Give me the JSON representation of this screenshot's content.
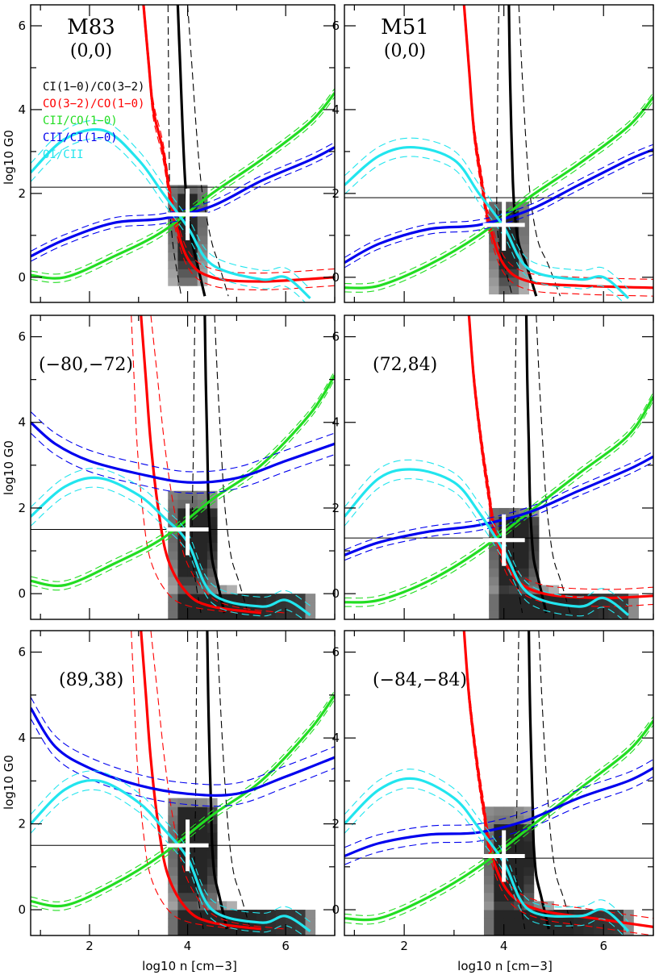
{
  "figure": {
    "xlabel": "log10 n [cm−3]",
    "ylabel": "log10 G0",
    "legend": [
      {
        "label": "CI(1−0)/CO(3−2)",
        "color": "#000000"
      },
      {
        "label": "CO(3−2)/CO(1−0)",
        "color": "#ff0000"
      },
      {
        "label": "CII/CO(1−0)",
        "color": "#22dd22"
      },
      {
        "label": "CII/CI(1−0)",
        "color": "#0000ee"
      },
      {
        "label": "OI/CII",
        "color": "#22e5ee"
      }
    ]
  },
  "chart_data": [
    {
      "type": "line",
      "galaxy": "M83",
      "position": "(0,0)",
      "xlim": [
        0.8,
        7.0
      ],
      "ylim": [
        -0.6,
        6.5
      ],
      "xticks": [
        2,
        4,
        6
      ],
      "yticks": [
        0,
        2,
        4,
        6
      ],
      "hline": 2.15,
      "best_fit": [
        4.0,
        1.5
      ],
      "grid": "off",
      "legend_placement": "left",
      "series": [
        {
          "name": "CI(1−0)/CO(3−2)",
          "x": [
            3.8,
            3.85,
            3.9,
            3.95,
            4.0,
            4.1,
            4.2,
            4.35
          ],
          "y": [
            6.5,
            5,
            3.5,
            2.3,
            1.6,
            0.8,
            0.3,
            -0.45
          ],
          "band": 0.2
        },
        {
          "name": "CO(3−2)/CO(1−0)",
          "x": [
            3.1,
            3.2,
            3.3,
            3.5,
            3.7,
            4.0,
            4.5,
            5.5,
            7.0
          ],
          "y": [
            6.5,
            5.2,
            4.0,
            3.0,
            1.6,
            0.45,
            0.0,
            -0.1,
            0.0
          ],
          "band": 0.2
        },
        {
          "name": "CII/CO(1−0)",
          "x": [
            0.8,
            1.5,
            2.5,
            3.5,
            4.5,
            5.5,
            6.5,
            7.0
          ],
          "y": [
            0.05,
            0.0,
            0.5,
            1.1,
            2.0,
            2.8,
            3.7,
            4.4
          ],
          "band": 0.1
        },
        {
          "name": "CII/CI(1−0)",
          "x": [
            0.8,
            1.5,
            2.5,
            3.5,
            4.5,
            5.5,
            6.5,
            7.0
          ],
          "y": [
            0.5,
            0.9,
            1.3,
            1.4,
            1.7,
            2.3,
            2.8,
            3.1
          ],
          "band": 0.12
        },
        {
          "name": "OI/CII",
          "x": [
            0.8,
            1.5,
            2.3,
            3.0,
            3.5,
            4.0,
            4.5,
            5.5,
            6.0,
            6.5
          ],
          "y": [
            2.5,
            3.3,
            3.5,
            2.8,
            2.0,
            1.2,
            0.3,
            -0.05,
            0.0,
            -0.5
          ],
          "band": 0.22
        }
      ],
      "heatmap": {
        "x": [
          3.6,
          4.4
        ],
        "y": [
          -0.2,
          2.2
        ]
      }
    },
    {
      "type": "line",
      "galaxy": "M51",
      "position": "(0,0)",
      "xlim": [
        0.8,
        7.0
      ],
      "ylim": [
        -0.6,
        6.5
      ],
      "xticks": [
        2,
        4,
        6
      ],
      "yticks": [
        0,
        2,
        4,
        6
      ],
      "hline": 1.9,
      "best_fit": [
        4.0,
        1.25
      ],
      "grid": "off",
      "series": [
        {
          "name": "CI(1−0)/CO(3−2)",
          "x": [
            4.1,
            4.12,
            4.15,
            4.18,
            4.22,
            4.3,
            4.45,
            4.65
          ],
          "y": [
            6.5,
            5,
            3.5,
            2.3,
            1.5,
            0.8,
            0.3,
            -0.45
          ],
          "band": 0.2
        },
        {
          "name": "CO(3−2)/CO(1−0)",
          "x": [
            3.2,
            3.3,
            3.4,
            3.55,
            3.7,
            4.0,
            4.5,
            5.5,
            7.0
          ],
          "y": [
            6.5,
            5.0,
            3.5,
            2.3,
            1.3,
            0.3,
            -0.1,
            -0.2,
            -0.25
          ],
          "band": 0.2
        },
        {
          "name": "CII/CO(1−0)",
          "x": [
            0.8,
            1.5,
            2.5,
            3.5,
            4.5,
            5.5,
            6.5,
            7.0
          ],
          "y": [
            -0.25,
            -0.2,
            0.3,
            1.0,
            1.9,
            2.7,
            3.6,
            4.3
          ],
          "band": 0.1
        },
        {
          "name": "CII/CI(1−0)",
          "x": [
            0.8,
            1.5,
            2.5,
            3.5,
            4.5,
            5.5,
            6.5,
            7.0
          ],
          "y": [
            0.35,
            0.8,
            1.15,
            1.25,
            1.6,
            2.2,
            2.8,
            3.05
          ],
          "band": 0.12
        },
        {
          "name": "OI/CII",
          "x": [
            0.8,
            1.5,
            2.2,
            3.0,
            3.5,
            4.0,
            4.5,
            5.5,
            6.0,
            6.5
          ],
          "y": [
            2.2,
            2.9,
            3.1,
            2.8,
            2.0,
            1.2,
            0.2,
            -0.05,
            0.0,
            -0.5
          ],
          "band": 0.22
        }
      ],
      "heatmap": {
        "x": [
          3.7,
          4.5
        ],
        "y": [
          -0.4,
          1.8
        ]
      }
    },
    {
      "type": "line",
      "galaxy": "M83",
      "position": "(−80,−72)",
      "xlim": [
        0.8,
        7.0
      ],
      "ylim": [
        -0.6,
        6.5
      ],
      "xticks": [
        2,
        4,
        6
      ],
      "yticks": [
        0,
        2,
        4,
        6
      ],
      "hline": 1.5,
      "best_fit": [
        4.0,
        1.5
      ],
      "grid": "off",
      "series": [
        {
          "name": "CI(1−0)/CO(3−2)",
          "x": [
            4.35,
            4.37,
            4.4,
            4.42,
            4.45,
            4.5,
            4.6,
            4.75
          ],
          "y": [
            6.5,
            5,
            3.5,
            2.3,
            1.5,
            0.8,
            0.3,
            -0.45
          ],
          "band": 0.2
        },
        {
          "name": "CO(3−2)/CO(1−0)",
          "x": [
            3.05,
            3.15,
            3.25,
            3.4,
            3.6,
            4.0,
            4.5,
            5.5
          ],
          "y": [
            6.5,
            5.0,
            3.5,
            2.0,
            0.8,
            0.0,
            -0.3,
            -0.45
          ],
          "band": 0.2
        },
        {
          "name": "CII/CO(1−0)",
          "x": [
            0.8,
            1.5,
            2.5,
            3.5,
            4.5,
            5.5,
            6.5,
            7.0
          ],
          "y": [
            0.3,
            0.2,
            0.7,
            1.3,
            2.2,
            3.0,
            4.2,
            5.1
          ],
          "band": 0.1
        },
        {
          "name": "CII/CI(1−0)",
          "x": [
            0.8,
            1.3,
            2.0,
            3.0,
            4.0,
            5.0,
            6.0,
            7.0
          ],
          "y": [
            4.0,
            3.5,
            3.1,
            2.8,
            2.6,
            2.7,
            3.1,
            3.5
          ],
          "band": 0.25
        },
        {
          "name": "OI/CII",
          "x": [
            0.8,
            1.5,
            2.2,
            3.0,
            3.5,
            4.0,
            4.5,
            5.5,
            6.0,
            6.5
          ],
          "y": [
            1.8,
            2.5,
            2.7,
            2.3,
            1.8,
            1.2,
            0.0,
            -0.3,
            -0.15,
            -0.5
          ],
          "band": 0.22
        }
      ],
      "heatmap": {
        "x": [
          3.6,
          6.6
        ],
        "y": [
          -0.6,
          2.3
        ]
      }
    },
    {
      "type": "line",
      "galaxy": "M51",
      "position": "(72,84)",
      "xlim": [
        0.8,
        7.0
      ],
      "ylim": [
        -0.6,
        6.5
      ],
      "xticks": [
        2,
        4,
        6
      ],
      "yticks": [
        0,
        2,
        4,
        6
      ],
      "hline": 1.3,
      "best_fit": [
        4.0,
        1.25
      ],
      "grid": "off",
      "series": [
        {
          "name": "CI(1−0)/CO(3−2)",
          "x": [
            4.45,
            4.47,
            4.5,
            4.52,
            4.55,
            4.6,
            4.7,
            4.85
          ],
          "y": [
            6.5,
            5,
            3.5,
            2.3,
            1.5,
            0.8,
            0.3,
            -0.45
          ],
          "band": 0.2
        },
        {
          "name": "CO(3−2)/CO(1−0)",
          "x": [
            3.3,
            3.4,
            3.55,
            3.7,
            3.85,
            4.2,
            4.8,
            6.0,
            7.0
          ],
          "y": [
            6.5,
            5.0,
            3.5,
            2.3,
            1.3,
            0.4,
            0.0,
            -0.1,
            -0.05
          ],
          "band": 0.2
        },
        {
          "name": "CII/CO(1−0)",
          "x": [
            0.8,
            1.5,
            2.5,
            3.5,
            4.5,
            5.5,
            6.5,
            7.0
          ],
          "y": [
            -0.2,
            -0.15,
            0.3,
            1.0,
            1.9,
            2.8,
            3.7,
            4.6
          ],
          "band": 0.1
        },
        {
          "name": "CII/CI(1−0)",
          "x": [
            0.8,
            1.5,
            2.5,
            3.5,
            4.5,
            5.5,
            6.5,
            7.0
          ],
          "y": [
            0.9,
            1.2,
            1.45,
            1.6,
            1.9,
            2.4,
            2.9,
            3.2
          ],
          "band": 0.12
        },
        {
          "name": "OI/CII",
          "x": [
            0.8,
            1.5,
            2.2,
            3.0,
            3.5,
            4.0,
            4.5,
            5.5,
            6.0,
            6.5
          ],
          "y": [
            1.8,
            2.7,
            2.9,
            2.6,
            1.9,
            1.0,
            0.0,
            -0.3,
            -0.1,
            -0.5
          ],
          "band": 0.22
        }
      ],
      "heatmap": {
        "x": [
          3.7,
          6.7
        ],
        "y": [
          -0.6,
          2.0
        ]
      }
    },
    {
      "type": "line",
      "galaxy": "M83",
      "position": "(89,38)",
      "xlim": [
        0.8,
        7.0
      ],
      "ylim": [
        -0.6,
        6.5
      ],
      "xticks": [
        2,
        4,
        6
      ],
      "yticks": [
        0,
        2,
        4,
        6
      ],
      "hline": 1.5,
      "best_fit": [
        4.0,
        1.5
      ],
      "grid": "off",
      "series": [
        {
          "name": "CI(1−0)/CO(3−2)",
          "x": [
            4.4,
            4.42,
            4.45,
            4.48,
            4.5,
            4.55,
            4.65,
            4.8
          ],
          "y": [
            6.5,
            5,
            3.5,
            2.3,
            1.5,
            0.8,
            0.3,
            -0.45
          ],
          "band": 0.2
        },
        {
          "name": "CO(3−2)/CO(1−0)",
          "x": [
            3.05,
            3.15,
            3.25,
            3.4,
            3.6,
            4.0,
            4.5,
            5.5
          ],
          "y": [
            6.5,
            5.0,
            3.5,
            2.0,
            0.8,
            0.0,
            -0.3,
            -0.45
          ],
          "band": 0.2
        },
        {
          "name": "CII/CO(1−0)",
          "x": [
            0.8,
            1.5,
            2.5,
            3.5,
            4.5,
            5.5,
            6.5,
            7.0
          ],
          "y": [
            0.2,
            0.1,
            0.6,
            1.3,
            2.2,
            3.0,
            4.2,
            5.0
          ],
          "band": 0.1
        },
        {
          "name": "CII/CI(1−0)",
          "x": [
            0.8,
            1.3,
            2.0,
            3.0,
            4.0,
            5.0,
            6.0,
            7.0
          ],
          "y": [
            4.7,
            3.8,
            3.3,
            2.9,
            2.7,
            2.7,
            3.1,
            3.55
          ],
          "band": 0.25
        },
        {
          "name": "OI/CII",
          "x": [
            0.8,
            1.5,
            2.2,
            3.0,
            3.5,
            4.0,
            4.5,
            5.5,
            6.0,
            6.5
          ],
          "y": [
            2.0,
            2.8,
            3.0,
            2.5,
            1.9,
            1.2,
            0.0,
            -0.3,
            -0.15,
            -0.5
          ],
          "band": 0.22
        }
      ],
      "heatmap": {
        "x": [
          3.6,
          6.6
        ],
        "y": [
          -0.6,
          2.6
        ]
      }
    },
    {
      "type": "line",
      "galaxy": "M51",
      "position": "(−84,−84)",
      "xlim": [
        0.8,
        7.0
      ],
      "ylim": [
        -0.6,
        6.5
      ],
      "xticks": [
        2,
        4,
        6
      ],
      "yticks": [
        0,
        2,
        4,
        6
      ],
      "hline": 1.2,
      "best_fit": [
        4.0,
        1.25
      ],
      "grid": "off",
      "series": [
        {
          "name": "CI(1−0)/CO(3−2)",
          "x": [
            4.5,
            4.52,
            4.55,
            4.58,
            4.6,
            4.65,
            4.75,
            4.9
          ],
          "y": [
            6.5,
            5,
            3.5,
            2.3,
            1.5,
            0.8,
            0.3,
            -0.45
          ],
          "band": 0.2
        },
        {
          "name": "CO(3−2)/CO(1−0)",
          "x": [
            3.2,
            3.3,
            3.45,
            3.6,
            3.75,
            4.1,
            4.7,
            5.8,
            7.0
          ],
          "y": [
            6.5,
            5.0,
            3.5,
            2.3,
            1.3,
            0.4,
            0.0,
            -0.2,
            -0.4
          ],
          "band": 0.2
        },
        {
          "name": "CII/CO(1−0)",
          "x": [
            0.8,
            1.5,
            2.5,
            3.5,
            4.5,
            5.5,
            6.5,
            7.0
          ],
          "y": [
            -0.2,
            -0.2,
            0.3,
            1.0,
            1.9,
            2.8,
            3.7,
            4.4
          ],
          "band": 0.1
        },
        {
          "name": "CII/CI(1−0)",
          "x": [
            0.8,
            1.5,
            2.5,
            3.5,
            4.5,
            5.5,
            6.5,
            7.0
          ],
          "y": [
            1.25,
            1.55,
            1.75,
            1.8,
            2.1,
            2.6,
            3.0,
            3.3
          ],
          "band": 0.2
        },
        {
          "name": "OI/CII",
          "x": [
            0.8,
            1.5,
            2.2,
            3.0,
            3.5,
            4.0,
            4.5,
            5.5,
            6.0,
            6.5
          ],
          "y": [
            2.0,
            2.8,
            3.05,
            2.6,
            1.9,
            1.1,
            0.0,
            -0.15,
            0.0,
            -0.5
          ],
          "band": 0.22
        }
      ],
      "heatmap": {
        "x": [
          3.6,
          6.6
        ],
        "y": [
          -0.6,
          2.3
        ]
      }
    }
  ]
}
